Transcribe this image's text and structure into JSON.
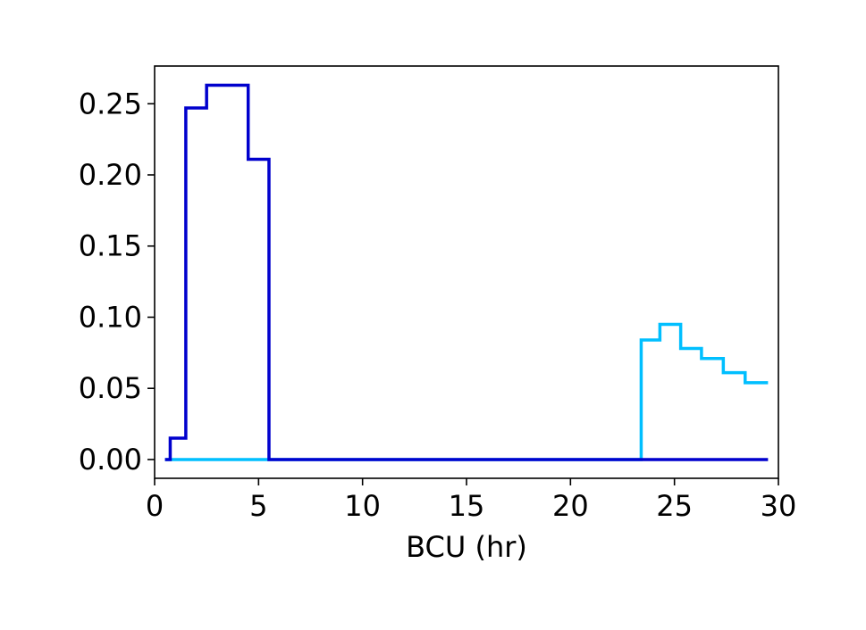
{
  "chart_data": {
    "type": "line",
    "drawstyle": "steps-mid",
    "title": "",
    "xlabel": "BCU (hr)",
    "ylabel": "",
    "xlim": [
      0,
      30
    ],
    "ylim": [
      -0.0132,
      0.2765
    ],
    "xticks": [
      0,
      5,
      10,
      15,
      20,
      25,
      30
    ],
    "xtick_labels": [
      "0",
      "5",
      "10",
      "15",
      "20",
      "25",
      "30"
    ],
    "yticks": [
      0.0,
      0.05,
      0.1,
      0.15,
      0.2,
      0.25
    ],
    "ytick_labels": [
      "0.00",
      "0.05",
      "0.10",
      "0.15",
      "0.20",
      "0.25"
    ],
    "grid": false,
    "legend": null,
    "x": [
      0.5,
      1.0,
      2.0,
      3.0,
      4.0,
      5.0,
      6.0,
      7.0,
      8.0,
      9.0,
      10.0,
      11.0,
      12.0,
      13.0,
      14.0,
      15.0,
      16.0,
      17.0,
      18.0,
      19.0,
      20.0,
      21.0,
      22.0,
      23.0,
      23.8,
      24.8,
      25.8,
      26.8,
      27.9,
      28.9,
      29.5
    ],
    "series": [
      {
        "color": "#00bfff",
        "values": [
          0,
          0,
          0,
          0,
          0,
          0,
          0,
          0,
          0,
          0,
          0,
          0,
          0,
          0,
          0,
          0,
          0,
          0,
          0,
          0,
          0,
          0,
          0,
          0,
          0.084,
          0.095,
          0.078,
          0.071,
          0.061,
          0.054,
          0.054
        ]
      },
      {
        "color": "#0000cd",
        "values": [
          0,
          0.015,
          0.247,
          0.263,
          0.263,
          0.211,
          0,
          0,
          0,
          0,
          0,
          0,
          0,
          0,
          0,
          0,
          0,
          0,
          0,
          0,
          0,
          0,
          0,
          0,
          0,
          0,
          0,
          0,
          0,
          0,
          0
        ]
      }
    ]
  }
}
